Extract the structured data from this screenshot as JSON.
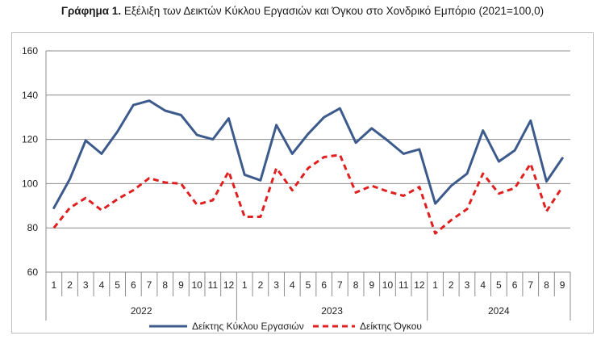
{
  "chart_data": {
    "type": "line",
    "title_bold": "Γράφημα 1.",
    "title_rest": "Εξέλιξη των Δεικτών Κύκλου Εργασιών και Όγκου στο Χονδρικό Εμπόριο (2021=100,0)",
    "ylim": [
      60,
      160
    ],
    "yticks": [
      60,
      80,
      100,
      120,
      140,
      160
    ],
    "gridlines": true,
    "legend_position": "bottom",
    "categories": [
      "1",
      "2",
      "3",
      "4",
      "5",
      "6",
      "7",
      "8",
      "9",
      "10",
      "11",
      "12",
      "1",
      "2",
      "3",
      "4",
      "5",
      "6",
      "7",
      "8",
      "9",
      "10",
      "11",
      "12",
      "1",
      "2",
      "3",
      "4",
      "5",
      "6",
      "7",
      "8",
      "9"
    ],
    "years": [
      {
        "label": "2022",
        "count": 12
      },
      {
        "label": "2023",
        "count": 12
      },
      {
        "label": "2024",
        "count": 9
      }
    ],
    "series": [
      {
        "name": "Δείκτης Κύκλου Εργασιών",
        "color": "#3c5a8c",
        "style": "solid",
        "values": [
          89,
          102,
          119.5,
          113.5,
          123.5,
          135.5,
          137.5,
          133,
          131,
          122,
          120,
          129.5,
          104,
          101.5,
          126.5,
          113.5,
          122.5,
          130,
          134,
          118.5,
          125,
          119.5,
          113.5,
          115.5,
          91,
          99,
          104.5,
          124,
          110,
          115,
          128.5,
          101,
          111.5
        ]
      },
      {
        "name": "Δείκτης Όγκου",
        "color": "#e02020",
        "style": "dashed",
        "values": [
          80,
          89,
          93.5,
          88,
          93,
          97,
          102.5,
          100.5,
          100,
          90.5,
          92.5,
          105.5,
          85,
          85,
          107,
          97,
          107,
          112,
          113,
          96,
          99,
          96.5,
          94.5,
          98.5,
          77.5,
          83.5,
          88.5,
          104.5,
          95.5,
          98,
          109,
          87.5,
          98.5
        ]
      }
    ]
  }
}
